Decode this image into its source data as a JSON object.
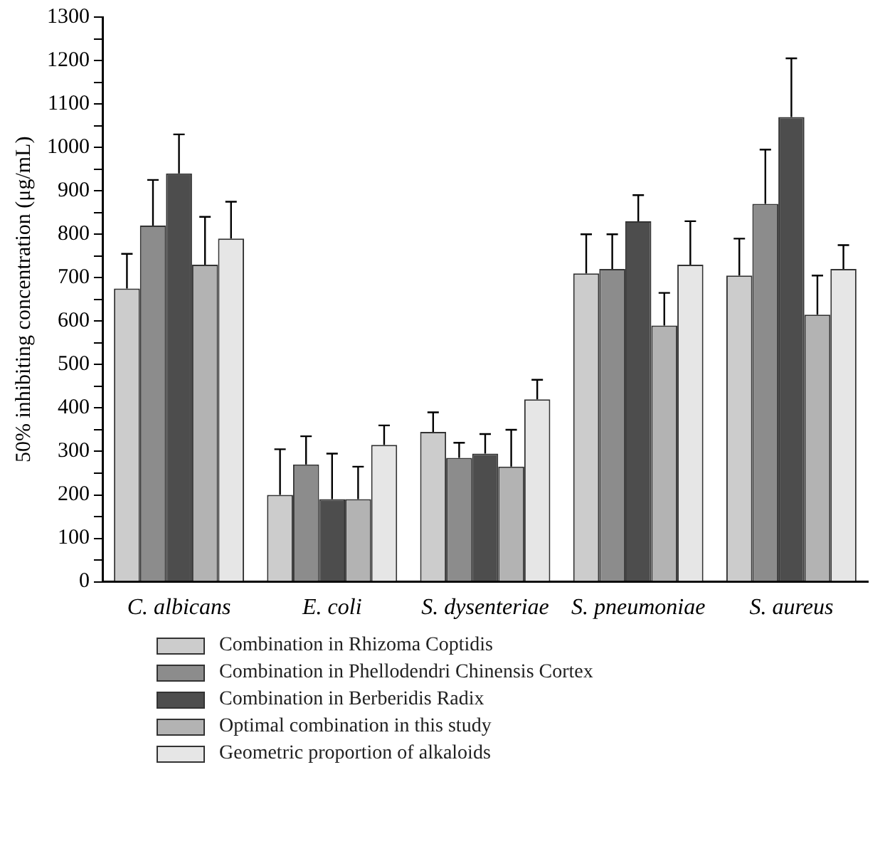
{
  "chart_data": {
    "type": "bar",
    "ylabel": "50% inhibiting concentration (μg/mL)",
    "categories": [
      "C. albicans",
      "E. coli",
      "S. dysenteriae",
      "S. pneumoniae",
      "S. aureus"
    ],
    "series": [
      {
        "name": "Combination in Rhizoma Coptidis",
        "color": "#cccccc",
        "values": [
          675,
          200,
          345,
          710,
          705
        ],
        "errors": [
          80,
          105,
          45,
          90,
          85
        ]
      },
      {
        "name": "Combination in Phellodendri Chinensis Cortex",
        "color": "#8c8c8c",
        "values": [
          820,
          270,
          285,
          720,
          870
        ],
        "errors": [
          105,
          65,
          35,
          80,
          125
        ]
      },
      {
        "name": "Combination in Berberidis Radix",
        "color": "#4d4d4d",
        "values": [
          940,
          190,
          295,
          830,
          1070
        ],
        "errors": [
          90,
          105,
          45,
          60,
          135
        ]
      },
      {
        "name": "Optimal combination in this study",
        "color": "#b3b3b3",
        "values": [
          730,
          190,
          265,
          590,
          615
        ],
        "errors": [
          110,
          75,
          85,
          75,
          90
        ]
      },
      {
        "name": "Geometric proportion of alkaloids",
        "color": "#e6e6e6",
        "values": [
          790,
          315,
          420,
          730,
          720
        ],
        "errors": [
          85,
          45,
          45,
          100,
          55
        ]
      }
    ],
    "ylim": [
      0,
      1300
    ],
    "yticks": [
      0,
      {
        "value": 50,
        "label": null
      },
      100,
      {
        "value": 150,
        "label": null
      },
      200,
      {
        "value": 250,
        "label": null
      },
      300,
      {
        "value": 350,
        "label": null
      },
      400,
      {
        "value": 450,
        "label": null
      },
      500,
      {
        "value": 550,
        "label": null
      },
      600,
      {
        "value": 650,
        "label": null
      },
      700,
      {
        "value": 750,
        "label": null
      },
      800,
      {
        "value": 850,
        "label": null
      },
      900,
      {
        "value": 950,
        "label": null
      },
      1000,
      {
        "value": 1050,
        "label": null
      },
      1100,
      {
        "value": 1150,
        "label": null
      },
      1200,
      {
        "value": 1250,
        "label": null
      },
      1300
    ],
    "grid": false,
    "legend": "bottom"
  }
}
